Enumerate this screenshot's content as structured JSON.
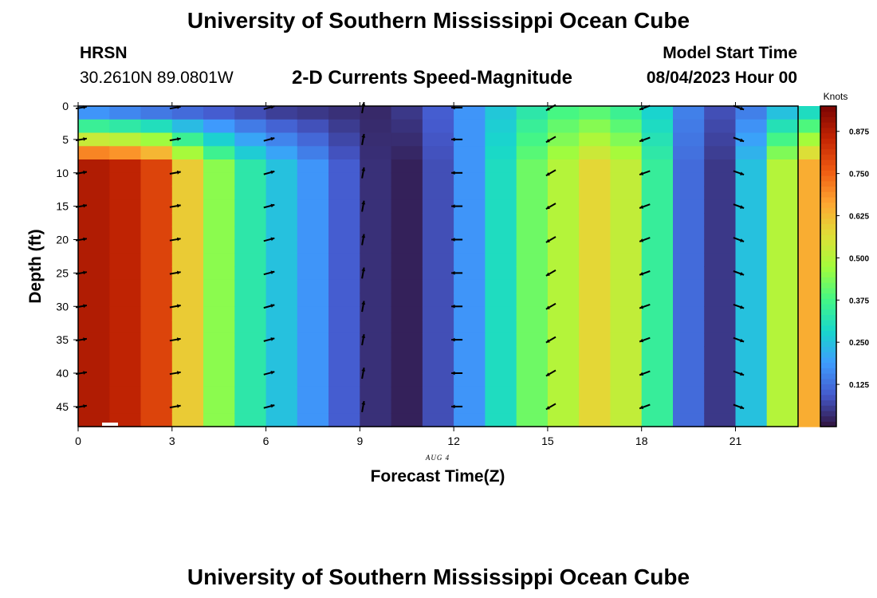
{
  "header": {
    "title": "University of Southern Mississippi Ocean Cube",
    "station_name": "HRSN",
    "station_coords": "30.2610N  89.0801W",
    "subtitle": "2-D Currents Speed-Magnitude",
    "model_start_label": "Model Start Time",
    "model_start_value": "08/04/2023 Hour 00"
  },
  "footer": {
    "title": "University of Southern Mississippi Ocean Cube"
  },
  "chart_data": {
    "type": "heatmap",
    "title": "2-D Currents Speed-Magnitude",
    "xlabel": "Forecast Time(Z)",
    "ylabel": "Depth (ft)",
    "date_label": "AUG 4",
    "xlim": [
      0,
      23
    ],
    "ylim": [
      0,
      48
    ],
    "x_ticks": [
      0,
      3,
      6,
      9,
      12,
      15,
      18,
      21
    ],
    "y_ticks": [
      0,
      5,
      10,
      15,
      20,
      25,
      30,
      35,
      40,
      45
    ],
    "colorbar": {
      "label": "Knots",
      "range": [
        0,
        0.95
      ],
      "ticks": [
        "0.125",
        "0.250",
        "0.375",
        "0.500",
        "0.625",
        "0.750",
        "0.875"
      ]
    },
    "hours": [
      0,
      1,
      2,
      3,
      4,
      5,
      6,
      7,
      8,
      9,
      10,
      11,
      12,
      13,
      14,
      15,
      16,
      17,
      18,
      19,
      20,
      21,
      22,
      23
    ],
    "speed_knots_deep": [
      0.88,
      0.86,
      0.8,
      0.6,
      0.45,
      0.33,
      0.25,
      0.18,
      0.1,
      0.04,
      0.02,
      0.08,
      0.18,
      0.3,
      0.42,
      0.5,
      0.58,
      0.52,
      0.35,
      0.12,
      0.05,
      0.25,
      0.5,
      0.65
    ],
    "speed_knots_surface": [
      0.18,
      0.16,
      0.14,
      0.12,
      0.1,
      0.08,
      0.06,
      0.05,
      0.04,
      0.03,
      0.05,
      0.1,
      0.18,
      0.26,
      0.33,
      0.38,
      0.4,
      0.36,
      0.28,
      0.15,
      0.08,
      0.15,
      0.25,
      0.3
    ],
    "vector_hours": [
      0,
      3,
      6,
      9,
      12,
      15,
      18,
      21
    ],
    "vector_depths_ft": [
      5,
      10,
      15,
      20,
      25,
      30,
      35,
      40,
      45
    ],
    "vector_direction_deg": [
      80,
      80,
      75,
      10,
      270,
      240,
      250,
      110
    ]
  }
}
